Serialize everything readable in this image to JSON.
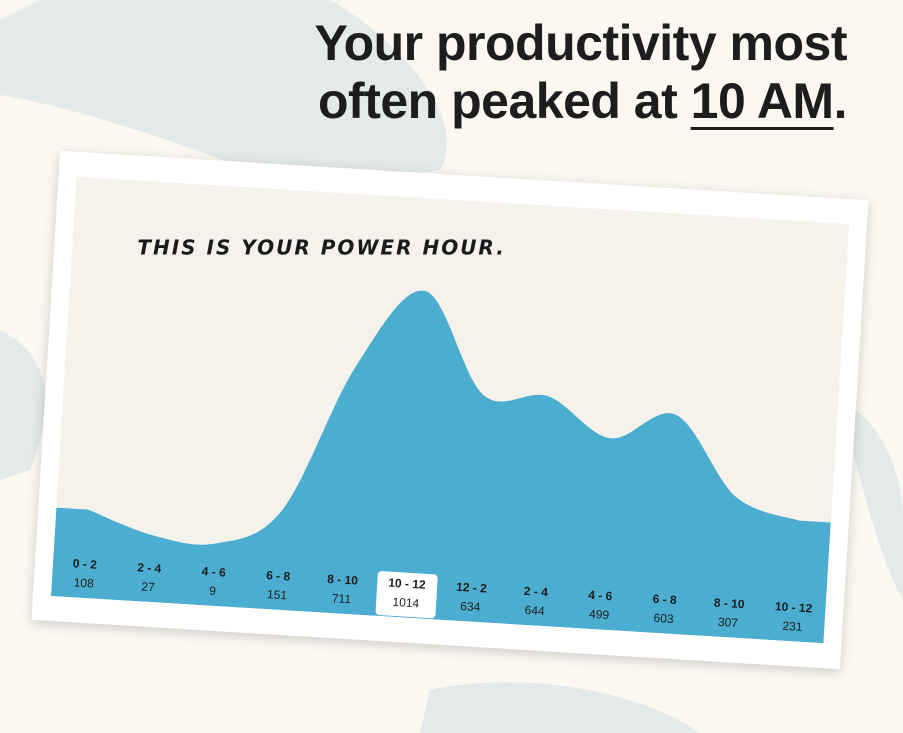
{
  "headline": {
    "line1": "Your productivity most",
    "line2_prefix": "often peaked at",
    "highlight": "10 AM",
    "suffix": "."
  },
  "chart_data": {
    "type": "area",
    "annotation": "THIS IS YOUR POWER HOUR.",
    "categories": [
      "0 - 2",
      "2 - 4",
      "4 - 6",
      "6 - 8",
      "8 - 10",
      "10 - 12",
      "12 - 2",
      "2 - 4",
      "4 - 6",
      "6 - 8",
      "8 - 10",
      "10 - 12"
    ],
    "values": [
      108,
      27,
      9,
      151,
      711,
      1014,
      634,
      644,
      499,
      603,
      307,
      231
    ],
    "highlight_index": 5,
    "ylim": [
      0,
      1100
    ],
    "grid": false,
    "legend": "none"
  },
  "colors": {
    "area": "#4badd0",
    "background": "#fbf7f1",
    "card_inner": "#f4f2ea",
    "brush": "#e0e8e6",
    "text": "#1d1d1d"
  }
}
